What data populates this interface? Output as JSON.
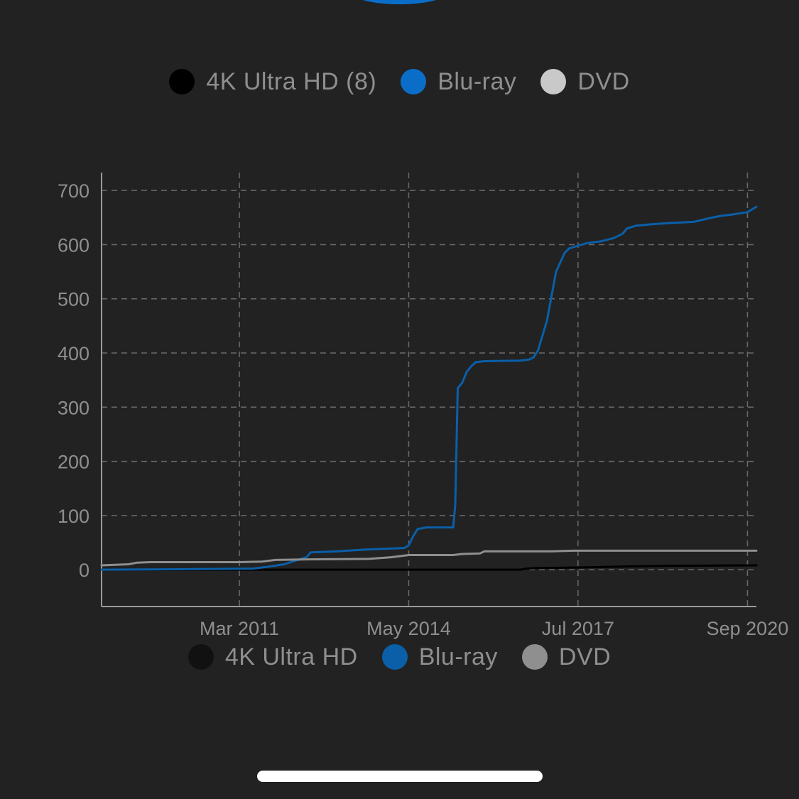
{
  "legend_top": [
    {
      "label": "4K Ultra HD (8)",
      "color": "#000000"
    },
    {
      "label": "Blu-ray",
      "color": "#0a6ec9"
    },
    {
      "label": "DVD",
      "color": "#c9c9c9"
    }
  ],
  "legend_bottom": [
    {
      "label": "4K Ultra HD",
      "color": "#111111"
    },
    {
      "label": "Blu-ray",
      "color": "#0a5fa8"
    },
    {
      "label": "DVD",
      "color": "#8f8f8f"
    }
  ],
  "chart_data": {
    "type": "line",
    "title": "",
    "xlabel": "",
    "ylabel": "",
    "ylim": [
      -68,
      733
    ],
    "xlim": [
      "2008-08-01",
      "2020-11-01"
    ],
    "y_ticks": [
      0,
      100,
      200,
      300,
      400,
      500,
      600,
      700
    ],
    "x_ticks": [
      {
        "date": "2011-03-01",
        "label": "Mar 2011"
      },
      {
        "date": "2014-05-01",
        "label": "May 2014"
      },
      {
        "date": "2017-07-01",
        "label": "Jul 2017"
      },
      {
        "date": "2020-09-01",
        "label": "Sep 2020"
      }
    ],
    "grid": true,
    "legend_position": "top and bottom",
    "series": [
      {
        "name": "4K Ultra HD",
        "color": "#000000",
        "points": [
          [
            "2008-08-01",
            0
          ],
          [
            "2016-06-01",
            0
          ],
          [
            "2016-07-15",
            2
          ],
          [
            "2016-10-01",
            3
          ],
          [
            "2017-06-01",
            4
          ],
          [
            "2018-01-01",
            5
          ],
          [
            "2018-06-01",
            6
          ],
          [
            "2019-03-01",
            7
          ],
          [
            "2020-11-01",
            8
          ]
        ]
      },
      {
        "name": "Blu-ray",
        "color": "#0a5fa8",
        "points": [
          [
            "2008-08-01",
            0
          ],
          [
            "2010-03-01",
            1
          ],
          [
            "2011-06-01",
            2
          ],
          [
            "2011-09-01",
            5
          ],
          [
            "2012-01-01",
            10
          ],
          [
            "2012-04-01",
            18
          ],
          [
            "2012-06-01",
            23
          ],
          [
            "2012-07-01",
            32
          ],
          [
            "2013-01-01",
            34
          ],
          [
            "2013-07-01",
            37
          ],
          [
            "2014-01-01",
            39
          ],
          [
            "2014-04-01",
            40
          ],
          [
            "2014-05-01",
            45
          ],
          [
            "2014-06-01",
            62
          ],
          [
            "2014-07-01",
            75
          ],
          [
            "2014-09-01",
            78
          ],
          [
            "2015-03-01",
            78
          ],
          [
            "2015-03-15",
            120
          ],
          [
            "2015-04-01",
            335
          ],
          [
            "2015-05-01",
            345
          ],
          [
            "2015-06-01",
            365
          ],
          [
            "2015-07-01",
            375
          ],
          [
            "2015-08-01",
            383
          ],
          [
            "2015-10-01",
            385
          ],
          [
            "2016-06-01",
            386
          ],
          [
            "2016-08-01",
            388
          ],
          [
            "2016-09-01",
            392
          ],
          [
            "2016-10-01",
            405
          ],
          [
            "2016-12-01",
            460
          ],
          [
            "2017-02-01",
            550
          ],
          [
            "2017-04-01",
            585
          ],
          [
            "2017-05-01",
            593
          ],
          [
            "2017-07-01",
            598
          ],
          [
            "2017-09-01",
            603
          ],
          [
            "2017-12-01",
            606
          ],
          [
            "2018-03-01",
            612
          ],
          [
            "2018-05-01",
            620
          ],
          [
            "2018-06-01",
            630
          ],
          [
            "2018-08-01",
            635
          ],
          [
            "2018-12-01",
            638
          ],
          [
            "2019-04-01",
            640
          ],
          [
            "2019-09-01",
            642
          ],
          [
            "2019-12-01",
            648
          ],
          [
            "2020-03-01",
            653
          ],
          [
            "2020-06-01",
            656
          ],
          [
            "2020-09-01",
            660
          ],
          [
            "2020-11-01",
            670
          ]
        ]
      },
      {
        "name": "DVD",
        "color": "#8f8f8f",
        "points": [
          [
            "2008-08-01",
            8
          ],
          [
            "2009-02-01",
            10
          ],
          [
            "2009-04-01",
            13
          ],
          [
            "2009-07-01",
            14
          ],
          [
            "2011-03-01",
            14
          ],
          [
            "2011-08-01",
            15
          ],
          [
            "2011-11-01",
            18
          ],
          [
            "2012-06-01",
            19
          ],
          [
            "2013-08-01",
            20
          ],
          [
            "2014-01-01",
            23
          ],
          [
            "2014-05-01",
            27
          ],
          [
            "2015-03-01",
            27
          ],
          [
            "2015-05-01",
            29
          ],
          [
            "2015-09-01",
            30
          ],
          [
            "2015-10-01",
            34
          ],
          [
            "2017-01-01",
            34
          ],
          [
            "2017-06-01",
            35
          ],
          [
            "2020-11-01",
            35
          ]
        ]
      }
    ]
  }
}
